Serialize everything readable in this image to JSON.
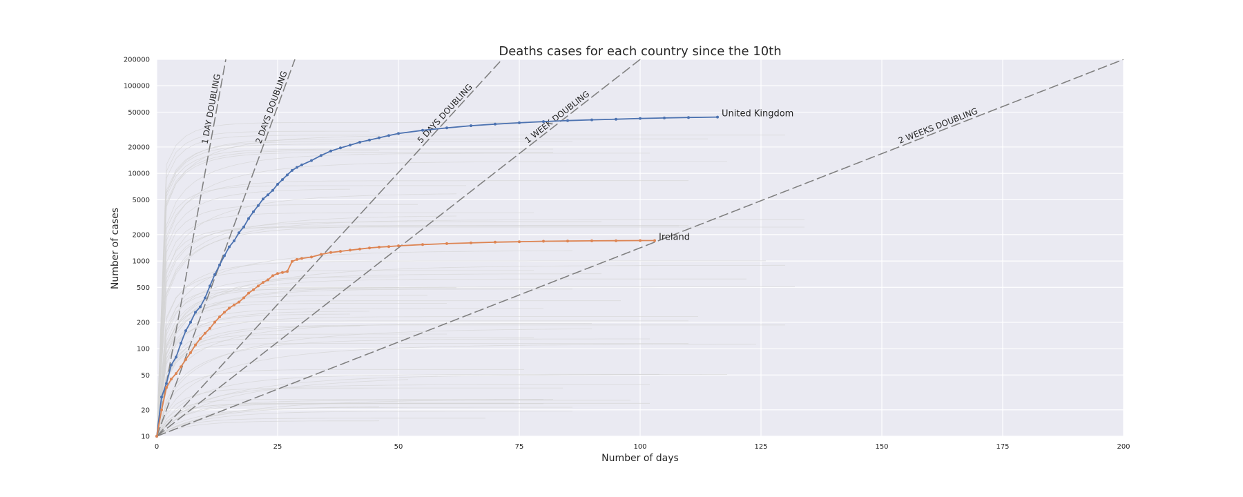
{
  "chart_data": {
    "type": "line",
    "title": "Deaths cases for each country since the 10th",
    "xlabel": "Number of days",
    "ylabel": "Number of cases",
    "xlim": [
      0,
      200
    ],
    "ylim": [
      10,
      200000
    ],
    "yscale": "log",
    "grid": true,
    "x_ticks": [
      0,
      25,
      50,
      75,
      100,
      125,
      150,
      175,
      200
    ],
    "y_ticks": [
      10,
      20,
      50,
      100,
      200,
      500,
      1000,
      2000,
      5000,
      10000,
      20000,
      50000,
      100000,
      200000
    ],
    "colors": {
      "background": "#eaeaf2",
      "grid": "#ffffff",
      "united_kingdom": "#4c72b0",
      "ireland": "#dd8452",
      "reference": "#808080",
      "background_countries": "#d3d3d3"
    },
    "reference_lines": [
      {
        "label": "1 DAY DOUBLING",
        "doubling_days": 1
      },
      {
        "label": "2 DAYS DOUBLING",
        "doubling_days": 2
      },
      {
        "label": "5 DAYS DOUBLING",
        "doubling_days": 5
      },
      {
        "label": "1 WEEK DOUBLING",
        "doubling_days": 7
      },
      {
        "label": "2 WEEKS DOUBLING",
        "doubling_days": 14
      }
    ],
    "series": [
      {
        "name": "United Kingdom",
        "x": [
          0,
          1,
          2,
          3,
          4,
          5,
          6,
          7,
          8,
          9,
          10,
          11,
          12,
          13,
          14,
          15,
          16,
          17,
          18,
          19,
          20,
          21,
          22,
          23,
          24,
          25,
          26,
          27,
          28,
          29,
          30,
          32,
          34,
          36,
          38,
          40,
          42,
          44,
          46,
          48,
          50,
          55,
          60,
          65,
          70,
          75,
          80,
          85,
          90,
          95,
          100,
          105,
          110,
          116
        ],
        "values": [
          10,
          28,
          40,
          65,
          80,
          115,
          160,
          200,
          260,
          300,
          380,
          520,
          700,
          900,
          1150,
          1450,
          1700,
          2100,
          2450,
          3050,
          3650,
          4300,
          5100,
          5700,
          6400,
          7500,
          8500,
          9600,
          10800,
          11700,
          12500,
          14000,
          16000,
          18000,
          19500,
          21000,
          22700,
          24000,
          25500,
          27000,
          28500,
          31000,
          33000,
          35000,
          36500,
          37800,
          39000,
          40000,
          40800,
          41500,
          42300,
          42900,
          43400,
          43900
        ]
      },
      {
        "name": "Ireland",
        "x": [
          0,
          1,
          2,
          3,
          4,
          5,
          6,
          7,
          8,
          9,
          10,
          11,
          12,
          13,
          14,
          15,
          16,
          17,
          18,
          19,
          20,
          21,
          22,
          23,
          24,
          25,
          26,
          27,
          28,
          29,
          30,
          32,
          34,
          36,
          38,
          40,
          42,
          44,
          46,
          48,
          50,
          55,
          60,
          65,
          70,
          75,
          80,
          85,
          90,
          95,
          100,
          103
        ],
        "values": [
          10,
          20,
          36,
          45,
          52,
          62,
          75,
          90,
          110,
          130,
          150,
          170,
          200,
          230,
          260,
          290,
          315,
          340,
          380,
          430,
          470,
          520,
          570,
          610,
          680,
          720,
          740,
          760,
          990,
          1040,
          1070,
          1110,
          1190,
          1250,
          1290,
          1330,
          1370,
          1410,
          1440,
          1460,
          1490,
          1540,
          1580,
          1610,
          1640,
          1660,
          1680,
          1690,
          1700,
          1705,
          1710,
          1712
        ]
      }
    ]
  }
}
